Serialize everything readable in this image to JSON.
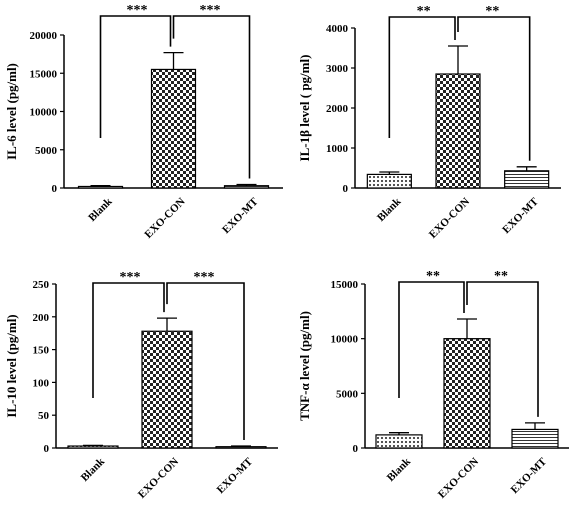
{
  "chart_data": [
    {
      "type": "bar",
      "categories": [
        "Blank",
        "EXO-CON",
        "EXO-MT"
      ],
      "values": [
        200,
        15500,
        300
      ],
      "errors": [
        100,
        2200,
        150
      ],
      "patterns": [
        "dots",
        "checker",
        "hlines"
      ],
      "ylabel": "IL-6  level  (pg/ml)",
      "ylim": [
        0,
        20000
      ],
      "yticks": [
        "0",
        "5000",
        "10000",
        "15000",
        "20000"
      ],
      "significance": [
        {
          "from": 0,
          "to": 1,
          "label": "***"
        },
        {
          "from": 1,
          "to": 2,
          "label": "***"
        }
      ]
    },
    {
      "type": "bar",
      "categories": [
        "Blank",
        "EXO-CON",
        "EXO-MT"
      ],
      "values": [
        340,
        2850,
        430
      ],
      "errors": [
        60,
        700,
        100
      ],
      "patterns": [
        "dots",
        "checker",
        "hlines"
      ],
      "ylabel": "IL-1β  level ( pg/ml)",
      "ylim": [
        0,
        4000
      ],
      "yticks": [
        "0",
        "1000",
        "2000",
        "3000",
        "4000"
      ],
      "significance": [
        {
          "from": 0,
          "to": 1,
          "label": "**"
        },
        {
          "from": 1,
          "to": 2,
          "label": "**"
        }
      ]
    },
    {
      "type": "bar",
      "categories": [
        "Blank",
        "EXO-CON",
        "EXO-MT"
      ],
      "values": [
        3,
        178,
        2
      ],
      "errors": [
        1,
        20,
        1
      ],
      "patterns": [
        "dots",
        "checker",
        "hlines"
      ],
      "ylabel": "IL-10  level  (pg/ml)",
      "ylim": [
        0,
        250
      ],
      "yticks": [
        "0",
        "50",
        "100",
        "150",
        "200",
        "250"
      ],
      "significance": [
        {
          "from": 0,
          "to": 1,
          "label": "***"
        },
        {
          "from": 1,
          "to": 2,
          "label": "***"
        }
      ]
    },
    {
      "type": "bar",
      "categories": [
        "Blank",
        "EXO-CON",
        "EXO-MT"
      ],
      "values": [
        1200,
        10000,
        1700
      ],
      "errors": [
        200,
        1800,
        600
      ],
      "patterns": [
        "dots",
        "checker",
        "hlines"
      ],
      "ylabel": "TNF-α  level  (pg/ml)",
      "ylim": [
        0,
        15000
      ],
      "yticks": [
        "0",
        "5000",
        "10000",
        "15000"
      ],
      "significance": [
        {
          "from": 0,
          "to": 1,
          "label": "**"
        },
        {
          "from": 1,
          "to": 2,
          "label": "**"
        }
      ]
    }
  ]
}
